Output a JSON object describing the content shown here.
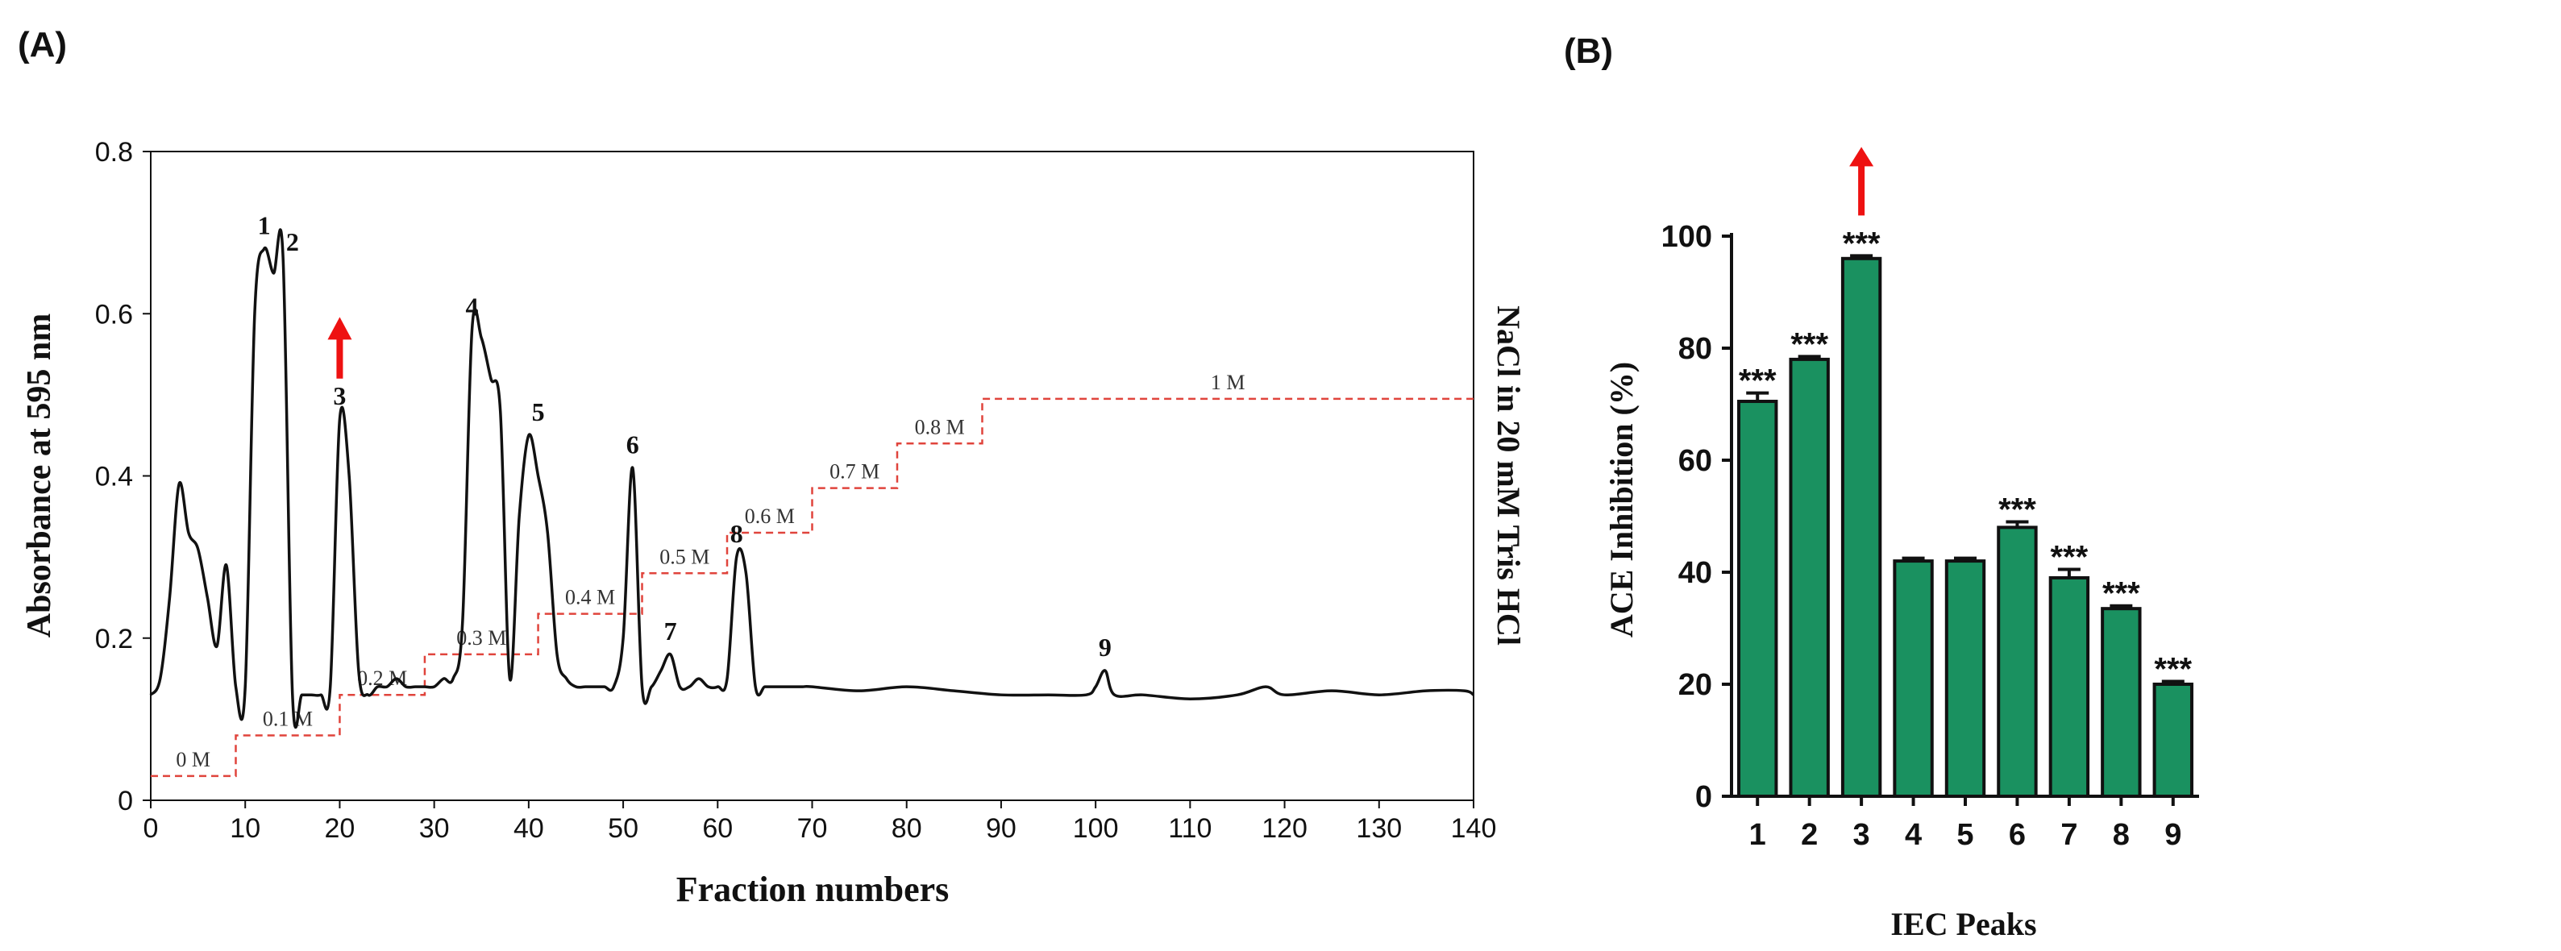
{
  "panels": {
    "a_label": "(A)",
    "b_label": "(B)"
  },
  "chart_data": [
    {
      "type": "line",
      "panel": "(A)",
      "xlabel": "Fraction numbers",
      "ylabel": "Absorbance at 595 nm",
      "y2label": "NaCl in 20 mM Tris HCl",
      "xlim": [
        0,
        140
      ],
      "ylim": [
        0,
        0.8
      ],
      "xticks": [
        0,
        10,
        20,
        30,
        40,
        50,
        60,
        70,
        80,
        90,
        100,
        110,
        120,
        130,
        140
      ],
      "yticks": [
        0,
        0.2,
        0.4,
        0.6,
        0.8
      ],
      "ytick_labels": [
        "0",
        "0.2",
        "0.4",
        "0.6",
        "0.8"
      ],
      "series": [
        {
          "name": "Absorbance",
          "color": "#111111",
          "points": [
            [
              0,
              0.13
            ],
            [
              1,
              0.15
            ],
            [
              2,
              0.25
            ],
            [
              3,
              0.39
            ],
            [
              4,
              0.33
            ],
            [
              5,
              0.31
            ],
            [
              6,
              0.25
            ],
            [
              7,
              0.19
            ],
            [
              8,
              0.29
            ],
            [
              9,
              0.14
            ],
            [
              10,
              0.14
            ],
            [
              11,
              0.6
            ],
            [
              12,
              0.68
            ],
            [
              13,
              0.65
            ],
            [
              14,
              0.67
            ],
            [
              15,
              0.13
            ],
            [
              16,
              0.13
            ],
            [
              17,
              0.13
            ],
            [
              18,
              0.13
            ],
            [
              19,
              0.14
            ],
            [
              20,
              0.47
            ],
            [
              21,
              0.4
            ],
            [
              22,
              0.16
            ],
            [
              23,
              0.13
            ],
            [
              24,
              0.14
            ],
            [
              25,
              0.14
            ],
            [
              26,
              0.15
            ],
            [
              27,
              0.14
            ],
            [
              28,
              0.14
            ],
            [
              29,
              0.14
            ],
            [
              30,
              0.14
            ],
            [
              31,
              0.15
            ],
            [
              32,
              0.15
            ],
            [
              33,
              0.22
            ],
            [
              34,
              0.58
            ],
            [
              35,
              0.57
            ],
            [
              36,
              0.52
            ],
            [
              37,
              0.48
            ],
            [
              38,
              0.15
            ],
            [
              39,
              0.35
            ],
            [
              40,
              0.45
            ],
            [
              41,
              0.4
            ],
            [
              42,
              0.33
            ],
            [
              43,
              0.18
            ],
            [
              44,
              0.15
            ],
            [
              45,
              0.14
            ],
            [
              46,
              0.14
            ],
            [
              47,
              0.14
            ],
            [
              48,
              0.14
            ],
            [
              49,
              0.14
            ],
            [
              50,
              0.2
            ],
            [
              51,
              0.41
            ],
            [
              52,
              0.14
            ],
            [
              53,
              0.14
            ],
            [
              54,
              0.16
            ],
            [
              55,
              0.18
            ],
            [
              56,
              0.14
            ],
            [
              57,
              0.14
            ],
            [
              58,
              0.15
            ],
            [
              59,
              0.14
            ],
            [
              60,
              0.14
            ],
            [
              61,
              0.15
            ],
            [
              62,
              0.3
            ],
            [
              63,
              0.28
            ],
            [
              64,
              0.14
            ],
            [
              65,
              0.14
            ],
            [
              66,
              0.14
            ],
            [
              67,
              0.14
            ],
            [
              68,
              0.14
            ],
            [
              69,
              0.14
            ],
            [
              70,
              0.14
            ],
            [
              75,
              0.135
            ],
            [
              80,
              0.14
            ],
            [
              85,
              0.135
            ],
            [
              90,
              0.13
            ],
            [
              95,
              0.13
            ],
            [
              99,
              0.13
            ],
            [
              100,
              0.14
            ],
            [
              101,
              0.16
            ],
            [
              102,
              0.13
            ],
            [
              105,
              0.13
            ],
            [
              110,
              0.125
            ],
            [
              115,
              0.13
            ],
            [
              118,
              0.14
            ],
            [
              120,
              0.13
            ],
            [
              125,
              0.135
            ],
            [
              130,
              0.13
            ],
            [
              135,
              0.135
            ],
            [
              139,
              0.135
            ],
            [
              140,
              0.13
            ]
          ]
        }
      ],
      "gradient": {
        "color": "#e0443c",
        "steps": [
          {
            "x0": 0,
            "x1": 9,
            "level": 0.03,
            "label": "0 M"
          },
          {
            "x0": 9,
            "x1": 20,
            "level": 0.08,
            "label": "0.1 M"
          },
          {
            "x0": 20,
            "x1": 29,
            "level": 0.13,
            "label": "0.2 M"
          },
          {
            "x0": 29,
            "x1": 41,
            "level": 0.18,
            "label": "0.3 M"
          },
          {
            "x0": 41,
            "x1": 52,
            "level": 0.23,
            "label": "0.4 M"
          },
          {
            "x0": 52,
            "x1": 61,
            "level": 0.28,
            "label": "0.5 M"
          },
          {
            "x0": 61,
            "x1": 70,
            "level": 0.33,
            "label": "0.6 M"
          },
          {
            "x0": 70,
            "x1": 79,
            "level": 0.385,
            "label": "0.7 M"
          },
          {
            "x0": 79,
            "x1": 88,
            "level": 0.44,
            "label": "0.8 M"
          },
          {
            "x0": 88,
            "x1": 140,
            "level": 0.495,
            "label": "1 M"
          }
        ]
      },
      "peak_labels": [
        {
          "label": "1",
          "x": 12,
          "y": 0.69
        },
        {
          "label": "2",
          "x": 15,
          "y": 0.67
        },
        {
          "label": "3",
          "x": 20,
          "y": 0.48
        },
        {
          "label": "4",
          "x": 34,
          "y": 0.59
        },
        {
          "label": "5",
          "x": 41,
          "y": 0.46
        },
        {
          "label": "6",
          "x": 51,
          "y": 0.42
        },
        {
          "label": "7",
          "x": 55,
          "y": 0.19
        },
        {
          "label": "8",
          "x": 62,
          "y": 0.31
        },
        {
          "label": "9",
          "x": 101,
          "y": 0.17
        }
      ],
      "arrow": {
        "x": 20,
        "y_from": 0.52,
        "y_to": 0.59,
        "color": "#ee1111"
      }
    },
    {
      "type": "bar",
      "panel": "(B)",
      "xlabel": "IEC Peaks",
      "ylabel": "ACE Inhibition (%)",
      "ylim": [
        0,
        100
      ],
      "yticks": [
        0,
        20,
        40,
        60,
        80,
        100
      ],
      "categories": [
        "1",
        "2",
        "3",
        "4",
        "5",
        "6",
        "7",
        "8",
        "9"
      ],
      "values": [
        70.5,
        78,
        96,
        42,
        42,
        48,
        39,
        33.5,
        20
      ],
      "errors": [
        1.5,
        0.5,
        0.5,
        0.5,
        0.5,
        1,
        1.5,
        0.5,
        0.5
      ],
      "annotations": [
        "***",
        "***",
        "***",
        "",
        "",
        "***",
        "***",
        "***",
        "***"
      ],
      "bar_color": "#1a9160",
      "arrow": {
        "category": "3",
        "color": "#ee1111"
      }
    }
  ]
}
